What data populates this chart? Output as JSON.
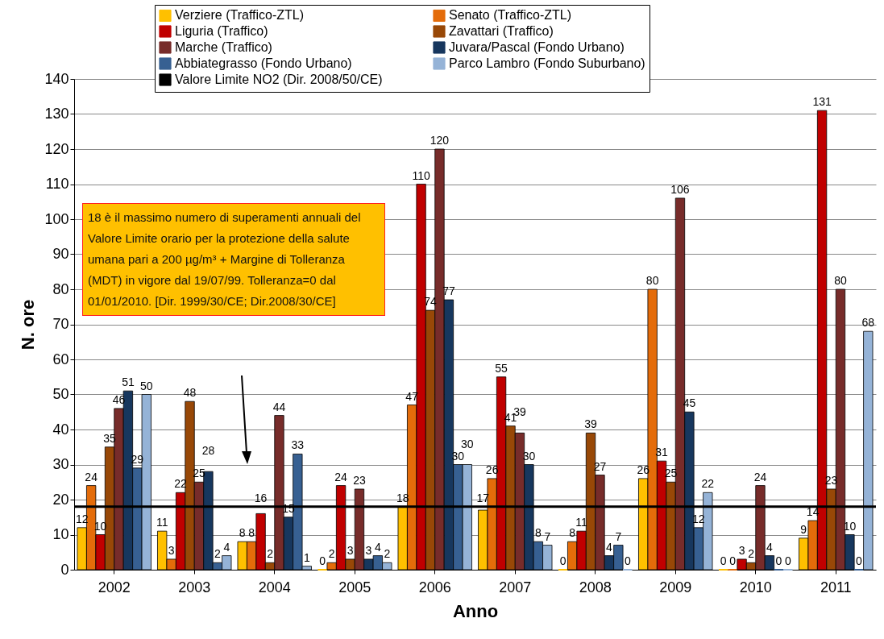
{
  "chart_data": {
    "type": "bar",
    "xlabel": "Anno",
    "ylabel": "N. ore",
    "categories": [
      "2002",
      "2003",
      "2004",
      "2005",
      "2006",
      "2007",
      "2008",
      "2009",
      "2010",
      "2011"
    ],
    "series": [
      {
        "name": "Verziere (Traffico-ZTL)",
        "color": "#ffc000",
        "values": [
          12,
          11,
          8,
          0,
          18,
          17,
          0,
          26,
          0,
          9
        ]
      },
      {
        "name": "Senato (Traffico-ZTL)",
        "color": "#e46c0a",
        "values": [
          24,
          3,
          8,
          2,
          47,
          26,
          8,
          80,
          0,
          14
        ]
      },
      {
        "name": "Liguria (Traffico)",
        "color": "#c00000",
        "values": [
          10,
          22,
          16,
          24,
          110,
          55,
          11,
          31,
          3,
          131
        ]
      },
      {
        "name": "Zavattari (Traffico)",
        "color": "#984807",
        "values": [
          35,
          48,
          2,
          3,
          74,
          41,
          39,
          25,
          2,
          23
        ]
      },
      {
        "name": "Marche (Traffico)",
        "color": "#772c2a",
        "values": [
          46,
          25,
          44,
          23,
          120,
          39,
          27,
          106,
          24,
          80
        ]
      },
      {
        "name": "Juvara/Pascal (Fondo Urbano)",
        "color": "#17375e",
        "values": [
          51,
          28,
          15,
          3,
          77,
          30,
          4,
          45,
          4,
          10
        ]
      },
      {
        "name": "Abbiategrasso (Fondo Urbano)",
        "color": "#376092",
        "values": [
          29,
          2,
          33,
          4,
          30,
          8,
          7,
          12,
          0,
          0
        ]
      },
      {
        "name": "Parco Lambro (Fondo Suburbano)",
        "color": "#95b3d7",
        "values": [
          50,
          4,
          1,
          2,
          30,
          7,
          0,
          22,
          0,
          68
        ]
      }
    ],
    "ref_lines": [
      {
        "axis": "y",
        "value": 18,
        "label": "Valore Limite NO2 (Dir. 2008/50/CE)",
        "color": "#000000"
      }
    ],
    "annotations": [
      "18 è il massimo numero di superamenti annuali del Valore Limite orario per la protezione della salute umana pari a 200 µg/m³ + Margine di Tolleranza (MDT) in vigore dal 19/07/99. Tolleranza=0 dal 01/01/2010. [Dir. 1999/30/CE; Dir.2008/30/CE]"
    ],
    "ylim": [
      0,
      140
    ],
    "yticks": [
      0,
      10,
      20,
      30,
      40,
      50,
      60,
      70,
      80,
      90,
      100,
      110,
      120,
      130,
      140
    ],
    "grid": "y",
    "legend": "top",
    "data_labels": true
  }
}
